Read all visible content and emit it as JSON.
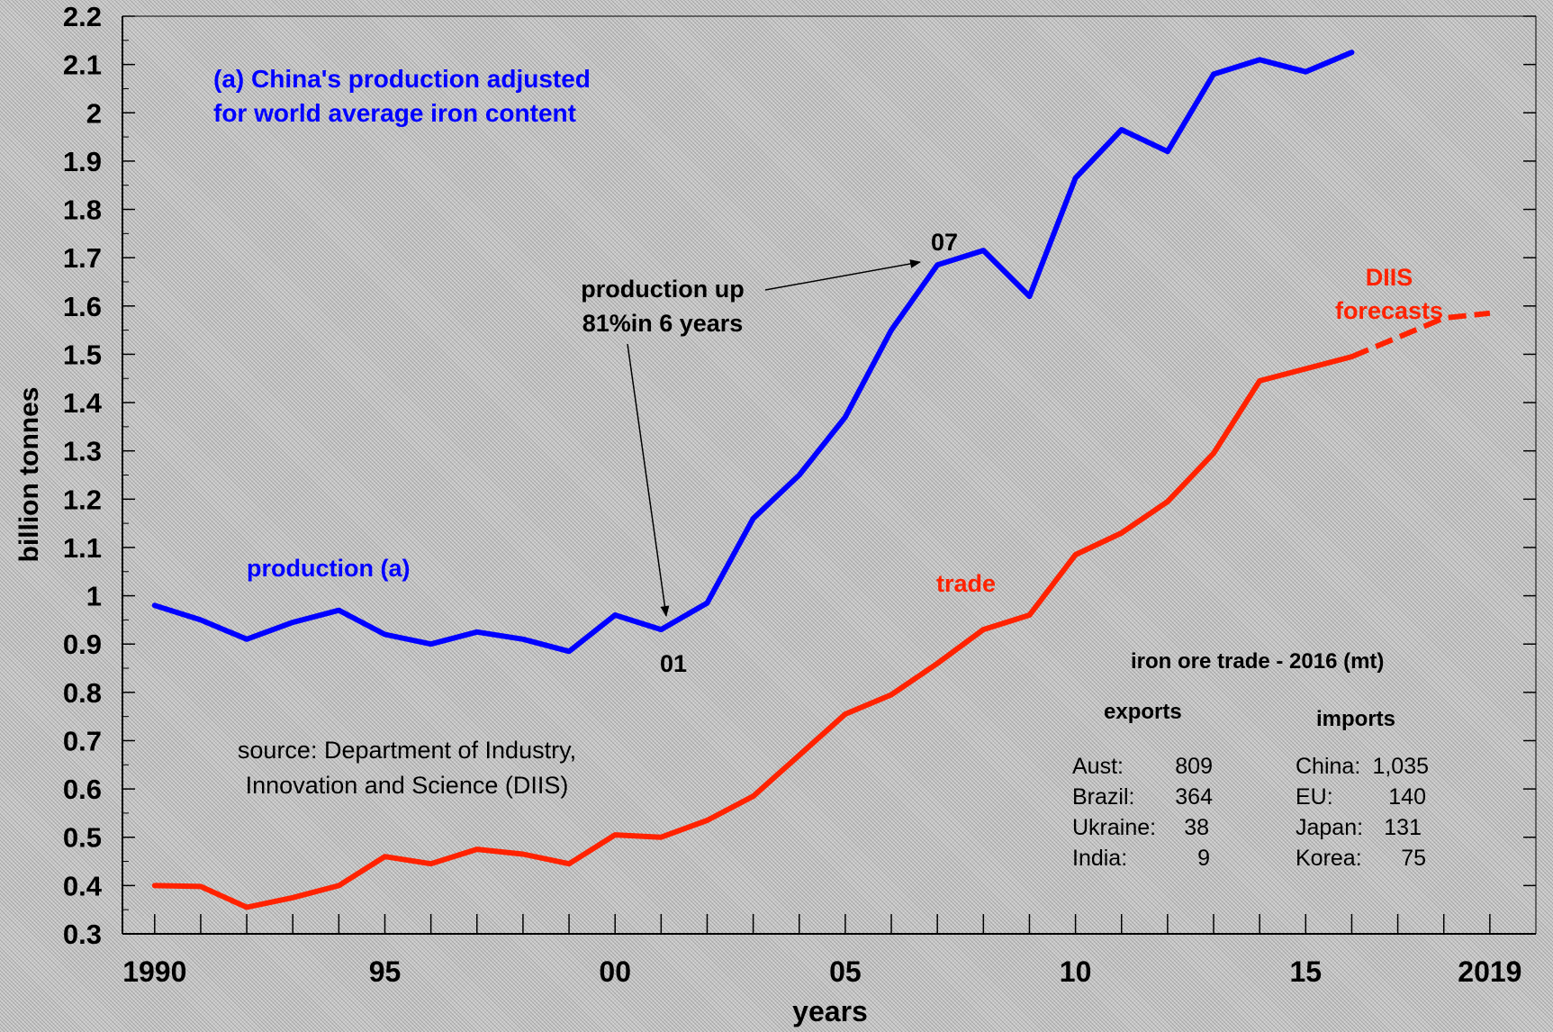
{
  "chart_data": {
    "type": "line",
    "xlabel": "years",
    "ylabel": "billion tonnes",
    "xlim": [
      1989.3,
      2020.0
    ],
    "ylim": [
      0.3,
      2.2
    ],
    "yticks": [
      0.3,
      0.4,
      0.5,
      0.6,
      0.7,
      0.8,
      0.9,
      1,
      1.1,
      1.2,
      1.3,
      1.4,
      1.5,
      1.6,
      1.7,
      1.8,
      1.9,
      2,
      2.1,
      2.2
    ],
    "ytick_labels": [
      "0.3",
      "0.4",
      "0.5",
      "0.6",
      "0.7",
      "0.8",
      "0.9",
      "1",
      "1.1",
      "1.2",
      "1.3",
      "1.4",
      "1.5",
      "1.6",
      "1.7",
      "1.8",
      "1.9",
      "2",
      "2.1",
      "2.2"
    ],
    "xticks": [
      1990,
      1995,
      2000,
      2005,
      2010,
      2015,
      2019
    ],
    "xtick_labels": [
      "1990",
      "95",
      "00",
      "05",
      "10",
      "15",
      "2019"
    ],
    "grid": false,
    "series": [
      {
        "name": "production (a)",
        "color": "#0000ff",
        "x": [
          1990,
          1991,
          1992,
          1993,
          1994,
          1995,
          1996,
          1997,
          1998,
          1999,
          2000,
          2001,
          2002,
          2003,
          2004,
          2005,
          2006,
          2007,
          2008,
          2009,
          2010,
          2011,
          2012,
          2013,
          2014,
          2015,
          2016
        ],
        "y": [
          0.98,
          0.95,
          0.91,
          0.945,
          0.97,
          0.92,
          0.9,
          0.925,
          0.91,
          0.885,
          0.96,
          0.93,
          0.985,
          1.16,
          1.25,
          1.37,
          1.55,
          1.685,
          1.715,
          1.62,
          1.865,
          1.965,
          1.92,
          2.08,
          2.11,
          2.085,
          2.125
        ]
      },
      {
        "name": "trade",
        "color": "#ff2200",
        "x": [
          1990,
          1991,
          1992,
          1993,
          1994,
          1995,
          1996,
          1997,
          1998,
          1999,
          2000,
          2001,
          2002,
          2003,
          2004,
          2005,
          2006,
          2007,
          2008,
          2009,
          2010,
          2011,
          2012,
          2013,
          2014,
          2015,
          2016
        ],
        "y": [
          0.4,
          0.398,
          0.355,
          0.375,
          0.4,
          0.46,
          0.445,
          0.475,
          0.465,
          0.445,
          0.505,
          0.5,
          0.535,
          0.585,
          0.67,
          0.755,
          0.795,
          0.86,
          0.93,
          0.96,
          1.085,
          1.13,
          1.195,
          1.295,
          1.445,
          1.47,
          1.495
        ]
      },
      {
        "name": "DIIS forecasts",
        "color": "#ff2200",
        "dashed": true,
        "x": [
          2016,
          2017,
          2018,
          2019
        ],
        "y": [
          1.495,
          1.535,
          1.575,
          1.585
        ]
      }
    ],
    "annotations": {
      "china_note": [
        "(a) China's production adjusted",
        "for world average iron content"
      ],
      "production_label": "production (a)",
      "trade_label": "trade",
      "forecast_label": [
        "DIIS",
        "forecasts"
      ],
      "arrow_text": [
        "production up",
        "81%in 6 years"
      ],
      "marker_01": "01",
      "marker_07": "07",
      "source": [
        "source: Department of Industry,",
        "Innovation and Science (DIIS)"
      ]
    },
    "trade_table": {
      "title": "iron ore trade - 2016  (mt)",
      "exports_header": "exports",
      "imports_header": "imports",
      "exports": [
        {
          "country": "Aust:",
          "value": "809"
        },
        {
          "country": "Brazil:",
          "value": "364"
        },
        {
          "country": "Ukraine:",
          "value": "38"
        },
        {
          "country": "India:",
          "value": "9"
        }
      ],
      "imports": [
        {
          "country": "China:",
          "value": "1,035"
        },
        {
          "country": "EU:",
          "value": "140"
        },
        {
          "country": "Japan:",
          "value": "131"
        },
        {
          "country": "Korea:",
          "value": "75"
        }
      ]
    }
  }
}
